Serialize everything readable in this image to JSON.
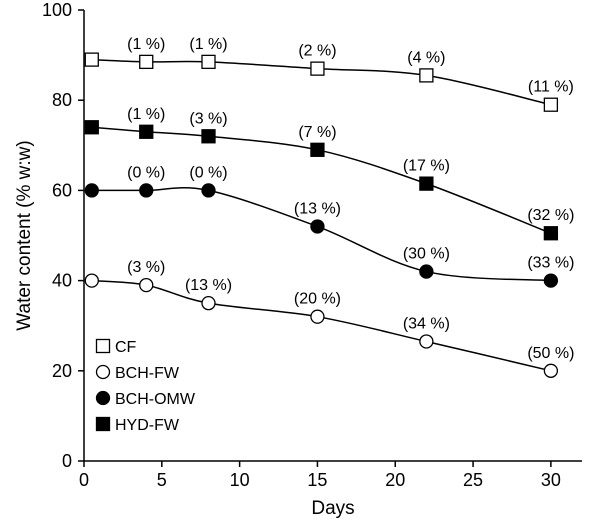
{
  "chart_data": {
    "type": "scatter",
    "title": "",
    "xlabel": "Days",
    "ylabel": "Water content (% w:w)",
    "xlim": [
      0,
      32
    ],
    "ylim": [
      0,
      100
    ],
    "xticks": [
      0,
      5,
      10,
      15,
      20,
      25,
      30
    ],
    "yticks": [
      0,
      20,
      40,
      60,
      80,
      100
    ],
    "grid": false,
    "legend_position": "bottom-left",
    "colors": {
      "axis": "#000000",
      "filled_marker": "#000000",
      "open_marker_fill": "#ffffff"
    },
    "series": [
      {
        "name": "CF",
        "marker": "square-open",
        "x": [
          0.5,
          4,
          8,
          15,
          22,
          30
        ],
        "y": [
          89,
          88.5,
          88.5,
          87,
          85.5,
          79
        ],
        "annotations": [
          "",
          "(1 %)",
          "(1 %)",
          "(2 %)",
          "(4 %)",
          "(11 %)"
        ]
      },
      {
        "name": "BCH-FW",
        "marker": "circle-open",
        "x": [
          0.5,
          4,
          8,
          15,
          22,
          30
        ],
        "y": [
          40,
          39,
          35,
          32,
          26.5,
          20
        ],
        "annotations": [
          "",
          "(3 %)",
          "(13 %)",
          "(20 %)",
          "(34 %)",
          "(50 %)"
        ]
      },
      {
        "name": "BCH-OMW",
        "marker": "circle-filled",
        "x": [
          0.5,
          4,
          8,
          15,
          22,
          30
        ],
        "y": [
          60,
          60,
          60,
          52,
          42,
          40
        ],
        "annotations": [
          "",
          "(0 %)",
          "(0 %)",
          "(13 %)",
          "(30 %)",
          "(33 %)"
        ]
      },
      {
        "name": "HYD-FW",
        "marker": "square-filled",
        "x": [
          0.5,
          4,
          8,
          15,
          22,
          30
        ],
        "y": [
          74,
          73,
          72,
          69,
          61.5,
          50.5
        ],
        "annotations": [
          "",
          "(1 %)",
          "(3 %)",
          "(7 %)",
          "(17 %)",
          "(32 %)"
        ]
      }
    ]
  }
}
